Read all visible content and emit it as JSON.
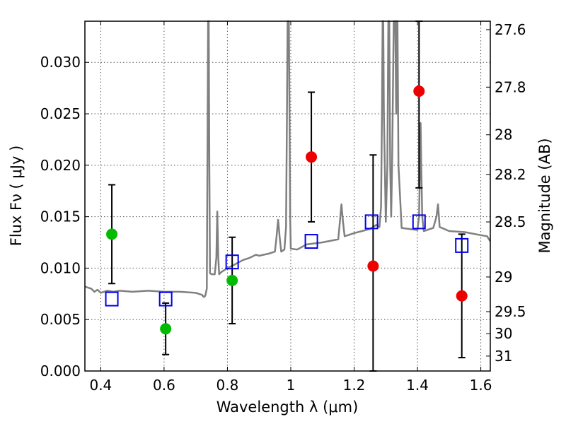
{
  "chart_data": {
    "type": "scatter",
    "xlabel": "Wavelength  λ (μm)",
    "ylabel": "Flux  Fν  ( μJy )",
    "ylabel_right": "Magnitude (AB)",
    "xlim": [
      0.35,
      1.63
    ],
    "ylim": [
      0.0,
      0.034
    ],
    "grid": true,
    "x_ticks": [
      "0.4",
      "0.6",
      "0.8",
      "1",
      "1.2",
      "1.4",
      "1.6"
    ],
    "y_ticks": [
      "0.000",
      "0.005",
      "0.010",
      "0.015",
      "0.020",
      "0.025",
      "0.030"
    ],
    "right_ticks": [
      {
        "label": "27.6",
        "flux": 0.03318
      },
      {
        "label": "27.8",
        "flux": 0.02759
      },
      {
        "label": "28",
        "flux": 0.02296
      },
      {
        "label": "28.2",
        "flux": 0.01911
      },
      {
        "label": "28.5",
        "flux": 0.01449
      },
      {
        "label": "29",
        "flux": 0.00914
      },
      {
        "label": "29.5",
        "flux": 0.00577
      },
      {
        "label": "30",
        "flux": 0.00363
      },
      {
        "label": "31",
        "flux": 0.00145
      }
    ],
    "model_spectrum": {
      "color": "#808080",
      "x": [
        0.35,
        0.37,
        0.38,
        0.39,
        0.4,
        0.42,
        0.44,
        0.46,
        0.5,
        0.55,
        0.6,
        0.65,
        0.7,
        0.72,
        0.725,
        0.73,
        0.735,
        0.737,
        0.739,
        0.741,
        0.743,
        0.745,
        0.75,
        0.76,
        0.765,
        0.768,
        0.771,
        0.774,
        0.78,
        0.8,
        0.82,
        0.85,
        0.87,
        0.89,
        0.9,
        0.93,
        0.95,
        0.955,
        0.96,
        0.965,
        0.97,
        0.98,
        0.985,
        0.988,
        0.99,
        0.992,
        0.994,
        0.996,
        0.998,
        1.0,
        1.02,
        1.05,
        1.1,
        1.15,
        1.155,
        1.16,
        1.165,
        1.17,
        1.2,
        1.25,
        1.27,
        1.28,
        1.285,
        1.288,
        1.29,
        1.292,
        1.294,
        1.3,
        1.305,
        1.308,
        1.311,
        1.314,
        1.317,
        1.32,
        1.325,
        1.33,
        1.333,
        1.335,
        1.337,
        1.34,
        1.35,
        1.4,
        1.405,
        1.408,
        1.41,
        1.412,
        1.415,
        1.42,
        1.45,
        1.46,
        1.465,
        1.47,
        1.5,
        1.55,
        1.6,
        1.62,
        1.63
      ],
      "y": [
        0.0082,
        0.008,
        0.0077,
        0.0079,
        0.0076,
        0.0078,
        0.0077,
        0.0078,
        0.0077,
        0.0078,
        0.0077,
        0.0077,
        0.0076,
        0.0074,
        0.0072,
        0.0073,
        0.008,
        0.02,
        0.035,
        0.035,
        0.02,
        0.0095,
        0.0094,
        0.0094,
        0.011,
        0.0155,
        0.011,
        0.0094,
        0.0096,
        0.01,
        0.0103,
        0.0108,
        0.011,
        0.0113,
        0.0112,
        0.0114,
        0.0116,
        0.013,
        0.0147,
        0.013,
        0.0116,
        0.0118,
        0.014,
        0.025,
        0.035,
        0.035,
        0.035,
        0.025,
        0.015,
        0.0119,
        0.0118,
        0.0123,
        0.0125,
        0.0128,
        0.0145,
        0.0162,
        0.0145,
        0.0131,
        0.0134,
        0.0138,
        0.0142,
        0.014,
        0.016,
        0.025,
        0.035,
        0.035,
        0.025,
        0.0145,
        0.02,
        0.035,
        0.035,
        0.02,
        0.015,
        0.02,
        0.035,
        0.035,
        0.025,
        0.035,
        0.035,
        0.02,
        0.0139,
        0.0137,
        0.015,
        0.02,
        0.0241,
        0.02,
        0.015,
        0.0136,
        0.0139,
        0.015,
        0.0162,
        0.014,
        0.0136,
        0.0135,
        0.0132,
        0.0131,
        0.0126
      ]
    },
    "observed_green": {
      "color": "#00bb00",
      "x": [
        0.435,
        0.605,
        0.815
      ],
      "y": [
        0.0133,
        0.0041,
        0.0088
      ],
      "err_lo": [
        0.0085,
        0.0016,
        0.0046
      ],
      "err_hi": [
        0.0181,
        0.0066,
        0.013
      ]
    },
    "observed_red": {
      "color": "#ee0000",
      "x": [
        1.065,
        1.26,
        1.405,
        1.54
      ],
      "y": [
        0.0208,
        0.0102,
        0.0272,
        0.0073
      ],
      "err_lo": [
        0.0145,
        0.0,
        0.0178,
        0.0013
      ],
      "err_hi": [
        0.0271,
        0.021,
        0.034,
        0.0133
      ]
    },
    "model_photometry": {
      "color": "#0000ee",
      "x": [
        0.435,
        0.605,
        0.815,
        1.065,
        1.255,
        1.405,
        1.54
      ],
      "y": [
        0.007,
        0.007,
        0.0106,
        0.0126,
        0.0145,
        0.0145,
        0.0122
      ]
    }
  }
}
